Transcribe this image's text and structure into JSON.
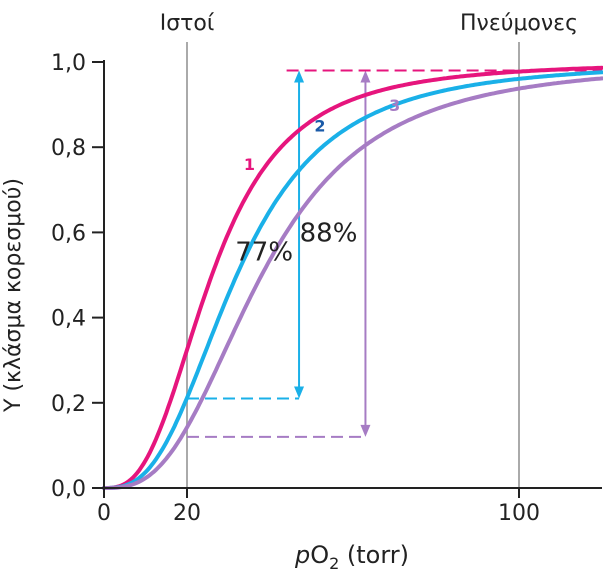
{
  "chart_data": {
    "type": "line",
    "xlabel": {
      "prefix": "p",
      "main": "O",
      "sub": "2",
      "suffix": " (torr)"
    },
    "ylabel": "Y (κλάσμα κορεσμού)",
    "xlim": [
      0,
      120
    ],
    "ylim": [
      0,
      1.0
    ],
    "x_ticks": [
      0,
      20,
      100
    ],
    "x_tick_labels": [
      "0",
      "20",
      "100"
    ],
    "y_ticks": [
      0,
      0.2,
      0.4,
      0.6,
      0.8,
      1.0
    ],
    "y_tick_labels": [
      "0,0",
      "0,2",
      "0,4",
      "0,6",
      "0,8",
      "1,0"
    ],
    "regions": [
      {
        "label": "Ιστοί",
        "x": 20
      },
      {
        "label": "Πνεύμονες",
        "x": 100
      }
    ],
    "series": [
      {
        "label": "1",
        "color": "#e6157d",
        "p50": 26.0,
        "n": 2.8
      },
      {
        "label": "2",
        "color": "#1ab0e8",
        "p50": 32.0,
        "n": 2.8
      },
      {
        "label": "3",
        "color": "#a67cc4",
        "p50": 38.0,
        "n": 2.8
      }
    ],
    "annotations": [
      {
        "text": "77%",
        "color": "#1ab0e8",
        "x": 47,
        "y_low": 0.21,
        "y_high": 0.98,
        "x_start": 20
      },
      {
        "text": "88%",
        "color": "#a67cc4",
        "x": 63,
        "y_low": 0.12,
        "y_high": 0.98,
        "x_start": 20
      },
      {
        "color": "#e6157d",
        "y": 0.98,
        "x_start": 44,
        "x_end": 120
      }
    ],
    "grid": false,
    "legend": "none"
  }
}
